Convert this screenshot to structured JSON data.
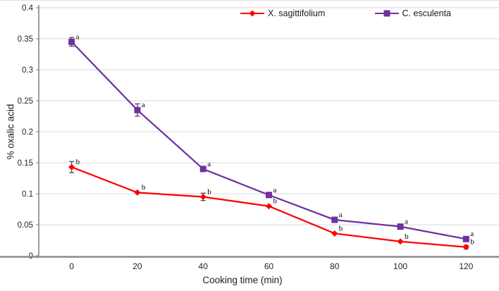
{
  "chart_data": {
    "type": "line",
    "title": "",
    "xlabel": "Cooking time (min)",
    "ylabel": "% oxalic acid",
    "x": [
      0,
      20,
      40,
      60,
      80,
      100,
      120
    ],
    "ylim": [
      0,
      0.4
    ],
    "ytick_step": 0.05,
    "ytick_labels": [
      "0",
      "0.05",
      "0.1",
      "0.15",
      "0.2",
      "0.25",
      "0.3",
      "0.35",
      "0.4"
    ],
    "grid": true,
    "legend_position": "top-center",
    "series": [
      {
        "name": "X. sagittifolium",
        "color": "#FF0000",
        "marker": "diamond",
        "values": [
          0.143,
          0.102,
          0.095,
          0.08,
          0.036,
          0.023,
          0.014
        ],
        "errors": [
          0.009,
          0.001,
          0.006,
          0.001,
          0.001,
          0.001,
          0.003
        ],
        "point_labels": [
          "b",
          "b",
          "b",
          "b",
          "b",
          "b",
          "b"
        ]
      },
      {
        "name": "C. esculenta",
        "color": "#7030A0",
        "marker": "square",
        "values": [
          0.345,
          0.235,
          0.14,
          0.098,
          0.058,
          0.047,
          0.027
        ],
        "errors": [
          0.007,
          0.01,
          0.001,
          0.001,
          0.001,
          0.001,
          0.001
        ],
        "point_labels": [
          "a",
          "a",
          "a",
          "a",
          "a",
          "a",
          "a"
        ]
      }
    ]
  },
  "colors": {
    "grid": "#d9d9d9",
    "y_axis_line": "#7f7f7f",
    "x_axis_line": "#8c8c8c",
    "error_bar": "#404040",
    "tick_text": "#262626",
    "label_text": "#1a1a1a"
  }
}
